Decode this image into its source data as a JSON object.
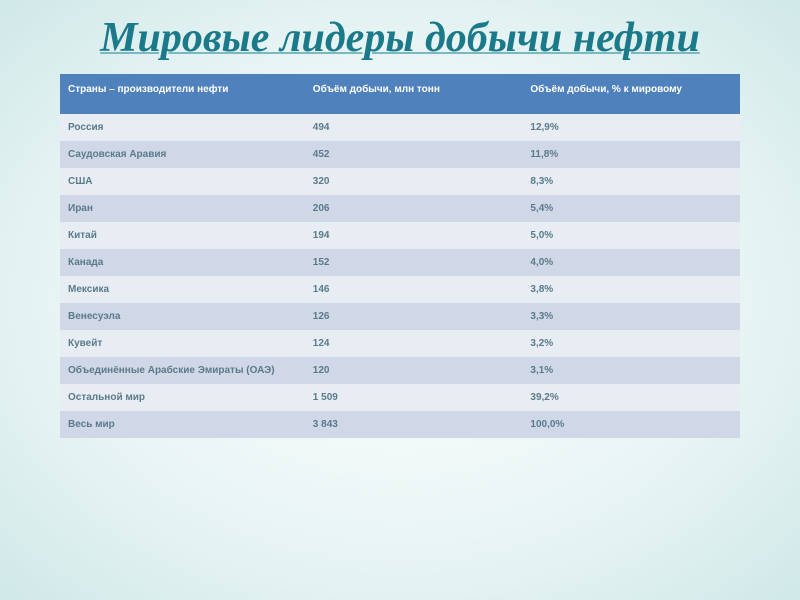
{
  "title": "Мировые лидеры добычи нефти",
  "table": {
    "type": "table",
    "header_bg": "#4f81bd",
    "header_text_color": "#ffffff",
    "row_odd_bg": "#e8edf4",
    "row_even_bg": "#d0d8e8",
    "cell_text_color": "#5a7a8a",
    "font_size": 10,
    "columns": [
      "Страны – производители нефти",
      "Объём добычи, млн тонн",
      "Объём добычи, % к мировому"
    ],
    "rows": [
      [
        "Россия",
        "494",
        "12,9%"
      ],
      [
        "Саудовская Аравия",
        "452",
        "11,8%"
      ],
      [
        "США",
        "320",
        "8,3%"
      ],
      [
        "Иран",
        "206",
        "5,4%"
      ],
      [
        "Китай",
        "194",
        "5,0%"
      ],
      [
        "Канада",
        "152",
        "4,0%"
      ],
      [
        "Мексика",
        "146",
        "3,8%"
      ],
      [
        "Венесуэла",
        "126",
        "3,3%"
      ],
      [
        "Кувейт",
        "124",
        "3,2%"
      ],
      [
        "Объединённые Арабские Эмираты (ОАЭ)",
        "120",
        "3,1%"
      ],
      [
        "Остальной мир",
        "1 509",
        "39,2%"
      ],
      [
        "Весь мир",
        "3 843",
        "100,0%"
      ]
    ]
  },
  "background": {
    "gradient_center": "#ffffff",
    "gradient_mid": "#e8f4f4",
    "gradient_edge": "#d0e8e8"
  },
  "title_style": {
    "color": "#1a7a8a",
    "font_size": 42,
    "font_style": "italic",
    "font_weight": "bold",
    "underline_color": "#7ab8c4"
  }
}
